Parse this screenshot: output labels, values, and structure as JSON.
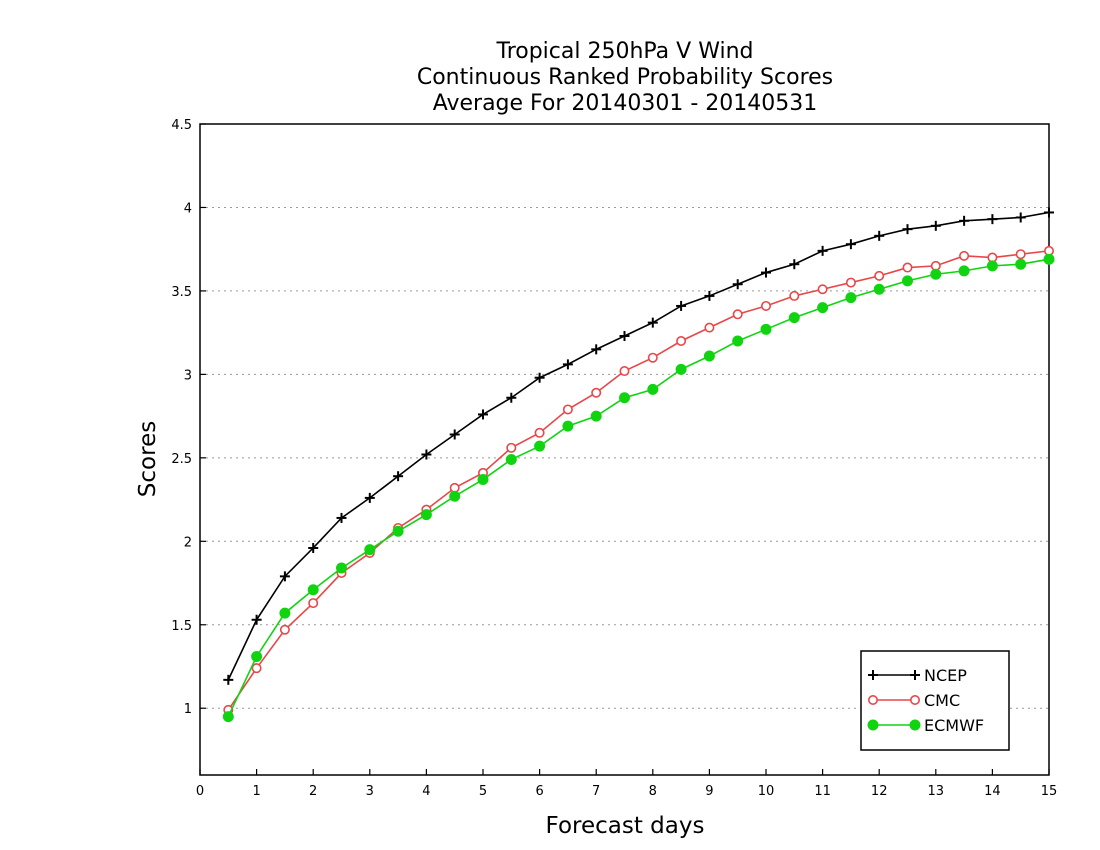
{
  "chart_data": {
    "type": "line",
    "title": [
      "Tropical 250hPa V Wind",
      "Continuous Ranked Probability Scores",
      "Average For 20140301 - 20140531"
    ],
    "xlabel": "Forecast days",
    "ylabel": "Scores",
    "xlim": [
      0,
      15
    ],
    "ylim": [
      0.6,
      4.5
    ],
    "xticks": [
      "0",
      "1",
      "2",
      "3",
      "4",
      "5",
      "6",
      "7",
      "8",
      "9",
      "10",
      "11",
      "12",
      "13",
      "14",
      "15"
    ],
    "yticks": [
      "1",
      "1.5",
      "2",
      "2.5",
      "3",
      "3.5",
      "4",
      "4.5"
    ],
    "grid": "horizontal dotted",
    "legend_position": "bottom-right",
    "x": [
      0.5,
      1,
      1.5,
      2,
      2.5,
      3,
      3.5,
      4,
      4.5,
      5,
      5.5,
      6,
      6.5,
      7,
      7.5,
      8,
      8.5,
      9,
      9.5,
      10,
      10.5,
      11,
      11.5,
      12,
      12.5,
      13,
      13.5,
      14,
      14.5,
      15
    ],
    "series": [
      {
        "name": "NCEP",
        "color": "#000000",
        "marker": "plus",
        "values": [
          1.17,
          1.53,
          1.79,
          1.96,
          2.14,
          2.26,
          2.39,
          2.52,
          2.64,
          2.76,
          2.86,
          2.98,
          3.06,
          3.15,
          3.23,
          3.31,
          3.41,
          3.47,
          3.54,
          3.61,
          3.66,
          3.74,
          3.78,
          3.83,
          3.87,
          3.89,
          3.92,
          3.93,
          3.94,
          3.97
        ]
      },
      {
        "name": "CMC",
        "color": "#e8474a",
        "marker": "open-circle",
        "values": [
          0.99,
          1.24,
          1.47,
          1.63,
          1.81,
          1.93,
          2.08,
          2.19,
          2.32,
          2.41,
          2.56,
          2.65,
          2.79,
          2.89,
          3.02,
          3.1,
          3.2,
          3.28,
          3.36,
          3.41,
          3.47,
          3.51,
          3.55,
          3.59,
          3.64,
          3.65,
          3.71,
          3.7,
          3.72,
          3.74
        ]
      },
      {
        "name": "ECMWF",
        "color": "#11d411",
        "marker": "filled-circle",
        "values": [
          0.95,
          1.31,
          1.57,
          1.71,
          1.84,
          1.95,
          2.06,
          2.16,
          2.27,
          2.37,
          2.49,
          2.57,
          2.69,
          2.75,
          2.86,
          2.91,
          3.03,
          3.11,
          3.2,
          3.27,
          3.34,
          3.4,
          3.46,
          3.51,
          3.56,
          3.6,
          3.62,
          3.65,
          3.66,
          3.69
        ]
      }
    ]
  }
}
